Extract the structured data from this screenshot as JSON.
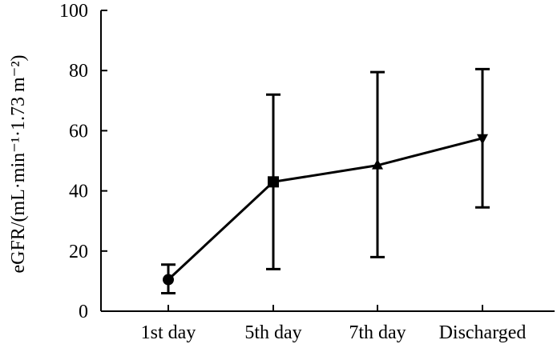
{
  "chart_data": {
    "type": "line",
    "title": "",
    "xlabel": "",
    "ylabel": "eGFR/(mL·min⁻¹·1.73 m⁻²)",
    "ylim": [
      0,
      100
    ],
    "yticks": [
      "0",
      "20",
      "40",
      "60",
      "80",
      "100"
    ],
    "categories": [
      "1st day",
      "5th day",
      "7th day",
      "Discharged"
    ],
    "series": [
      {
        "values": [
          10.5,
          43,
          48.5,
          57.5
        ],
        "error_low": [
          6,
          14,
          18,
          34.5
        ],
        "error_high": [
          15.5,
          72,
          79.5,
          80.5
        ],
        "markers": [
          "circle",
          "square",
          "triangle-up",
          "triangle-down"
        ],
        "color": "#000000"
      }
    ],
    "grid": false,
    "legend": "none"
  }
}
